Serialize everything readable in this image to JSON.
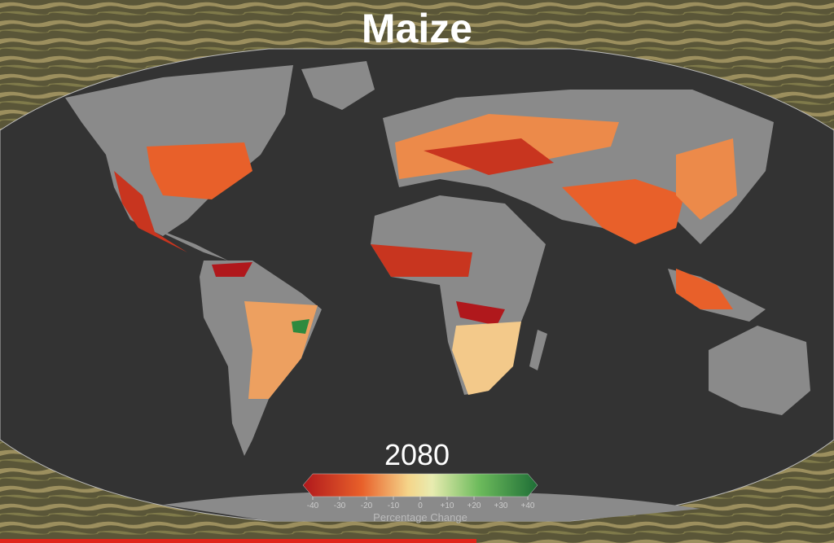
{
  "header": {
    "title": "Maize"
  },
  "year": "2080",
  "legend": {
    "title": "Percentage Change",
    "range": [
      -40,
      40
    ],
    "ticks": [
      -40,
      -30,
      -20,
      -10,
      0,
      {
        "value": 10,
        "label": "+10"
      },
      {
        "value": 20,
        "label": "+20"
      },
      {
        "value": 30,
        "label": "+30"
      },
      {
        "value": 40,
        "label": "+40"
      }
    ]
  }
}
